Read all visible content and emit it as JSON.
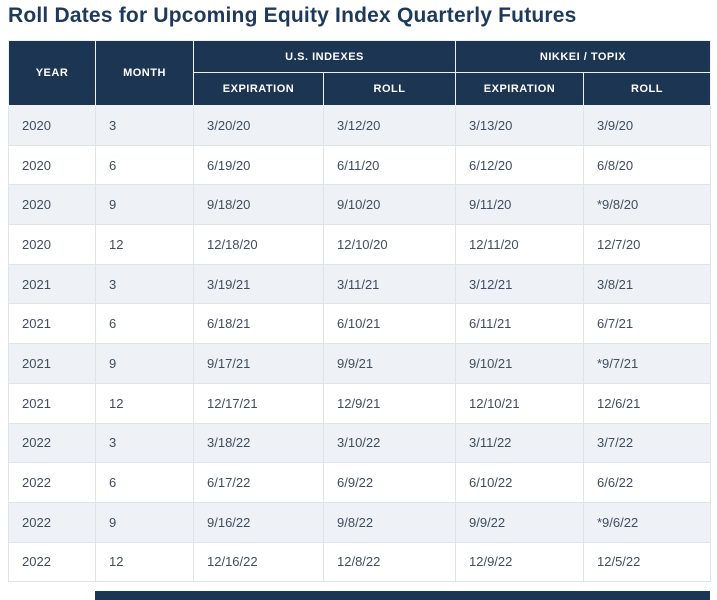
{
  "title": "Roll Dates for Upcoming Equity Index Quarterly Futures",
  "colors": {
    "header_bg": "#1c3552",
    "header_border": "#eef1f4",
    "title": "#1d3a5c",
    "body_text": "#3f4d5e",
    "alt_row_bg": "#eef2f6",
    "border": "#dfe4e9",
    "cutoff_bar": "#1c3552"
  },
  "table_header": {
    "year": "YEAR",
    "month": "MONTH",
    "us_group": "U.S. INDEXES",
    "nikkei_group": "NIKKEI / TOPIX",
    "expiration": "EXPIRATION",
    "roll": "ROLL"
  },
  "chart_data": {
    "type": "table",
    "title": "Roll Dates for Upcoming Equity Index Quarterly Futures",
    "columns": [
      "YEAR",
      "MONTH",
      "U.S. INDEXES EXPIRATION",
      "U.S. INDEXES ROLL",
      "NIKKEI / TOPIX EXPIRATION",
      "NIKKEI / TOPIX ROLL"
    ],
    "rows": [
      [
        "2020",
        "3",
        "3/20/20",
        "3/12/20",
        "3/13/20",
        "3/9/20"
      ],
      [
        "2020",
        "6",
        "6/19/20",
        "6/11/20",
        "6/12/20",
        "6/8/20"
      ],
      [
        "2020",
        "9",
        "9/18/20",
        "9/10/20",
        "9/11/20",
        "*9/8/20"
      ],
      [
        "2020",
        "12",
        "12/18/20",
        "12/10/20",
        "12/11/20",
        "12/7/20"
      ],
      [
        "2021",
        "3",
        "3/19/21",
        "3/11/21",
        "3/12/21",
        "3/8/21"
      ],
      [
        "2021",
        "6",
        "6/18/21",
        "6/10/21",
        "6/11/21",
        "6/7/21"
      ],
      [
        "2021",
        "9",
        "9/17/21",
        "9/9/21",
        "9/10/21",
        "*9/7/21"
      ],
      [
        "2021",
        "12",
        "12/17/21",
        "12/9/21",
        "12/10/21",
        "12/6/21"
      ],
      [
        "2022",
        "3",
        "3/18/22",
        "3/10/22",
        "3/11/22",
        "3/7/22"
      ],
      [
        "2022",
        "6",
        "6/17/22",
        "6/9/22",
        "6/10/22",
        "6/6/22"
      ],
      [
        "2022",
        "9",
        "9/16/22",
        "9/8/22",
        "9/9/22",
        "*9/6/22"
      ],
      [
        "2022",
        "12",
        "12/16/22",
        "12/8/22",
        "12/9/22",
        "12/5/22"
      ]
    ]
  },
  "cell_names": [
    "cell-year",
    "cell-month",
    "cell-us-expiration",
    "cell-us-roll",
    "cell-nikkei-expiration",
    "cell-nikkei-roll"
  ]
}
